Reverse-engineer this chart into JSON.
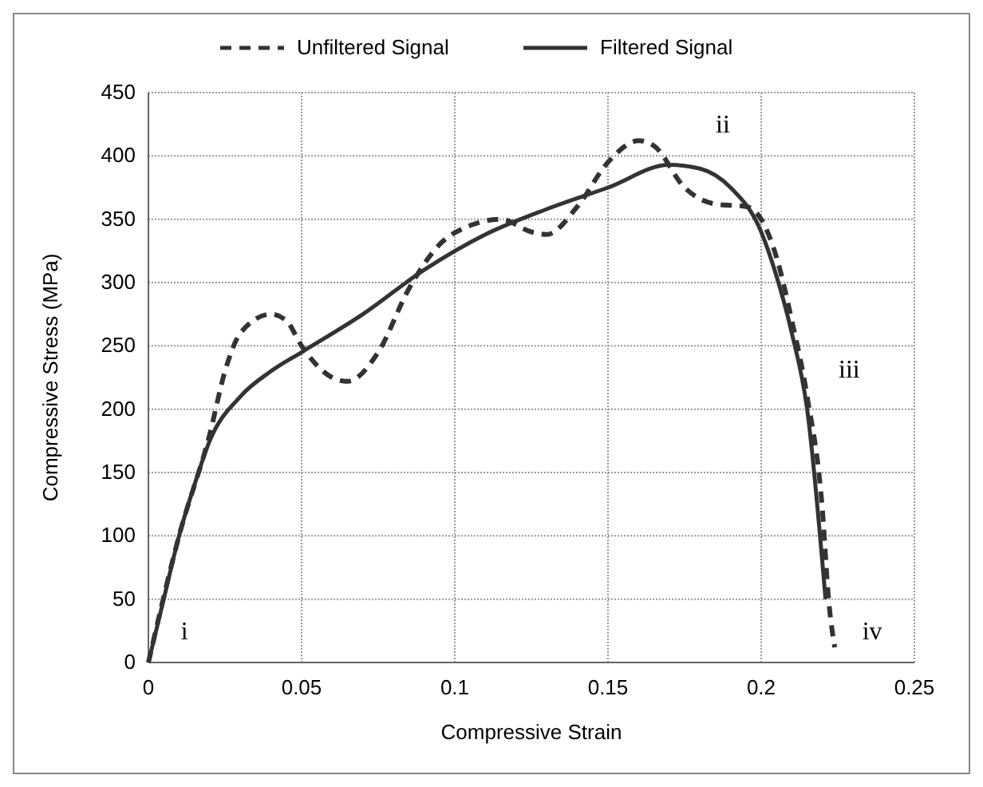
{
  "chart_data": {
    "type": "line",
    "xlabel": "Compressive Strain",
    "ylabel": "Compressive Stress (MPa)",
    "xlim": [
      0,
      0.25
    ],
    "xticks": [
      0,
      0.05,
      0.1,
      0.15,
      0.2,
      0.25
    ],
    "ylim": [
      0,
      450
    ],
    "yticks": [
      0,
      50,
      100,
      150,
      200,
      250,
      300,
      350,
      400,
      450
    ],
    "grid": true,
    "legend": "top",
    "marker": "none",
    "series": [
      {
        "name": "Unfiltered Signal",
        "color": "#333333",
        "line_style": "dashed",
        "x": [
          0,
          0.01,
          0.02,
          0.025,
          0.03,
          0.04,
          0.045,
          0.05,
          0.06,
          0.065,
          0.075,
          0.085,
          0.095,
          0.105,
          0.115,
          0.125,
          0.13,
          0.14,
          0.15,
          0.16,
          0.165,
          0.175,
          0.185,
          0.195,
          0.2,
          0.205,
          0.21,
          0.215,
          0.22,
          0.222,
          0.224
        ],
        "values": [
          0,
          100,
          180,
          230,
          260,
          275,
          270,
          250,
          225,
          222,
          245,
          295,
          330,
          345,
          350,
          340,
          338,
          360,
          395,
          412,
          408,
          375,
          362,
          360,
          350,
          320,
          270,
          210,
          120,
          50,
          12
        ]
      },
      {
        "name": "Filtered Signal",
        "color": "#333333",
        "line_style": "solid",
        "x": [
          0,
          0.005,
          0.01,
          0.015,
          0.02,
          0.03,
          0.04,
          0.05,
          0.07,
          0.09,
          0.11,
          0.13,
          0.15,
          0.17,
          0.18,
          0.19,
          0.2,
          0.205,
          0.21,
          0.215,
          0.221
        ],
        "values": [
          0,
          50,
          100,
          140,
          175,
          210,
          230,
          245,
          275,
          310,
          338,
          358,
          375,
          393,
          390,
          375,
          340,
          305,
          260,
          200,
          50
        ]
      }
    ],
    "annotations": [
      "i",
      "ii",
      "iii",
      "iv"
    ]
  }
}
